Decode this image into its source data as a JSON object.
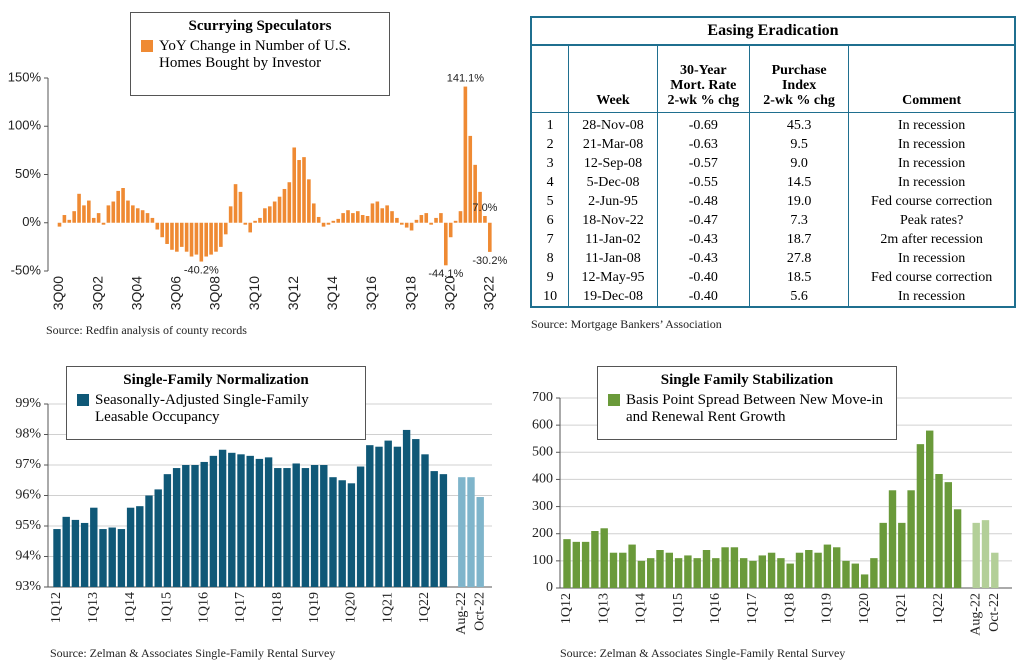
{
  "chart_data": [
    {
      "type": "bar",
      "title": "Scurrying Speculators",
      "source": "Source: Redfin analysis of county records",
      "categories": [
        "3Q00",
        null,
        null,
        null,
        null,
        null,
        null,
        null,
        "3Q02",
        null,
        null,
        null,
        null,
        null,
        null,
        null,
        "3Q04",
        null,
        null,
        null,
        null,
        null,
        null,
        null,
        "3Q06",
        null,
        null,
        null,
        null,
        null,
        null,
        null,
        "3Q08",
        null,
        null,
        null,
        null,
        null,
        null,
        null,
        "3Q10",
        null,
        null,
        null,
        null,
        null,
        null,
        null,
        "3Q12",
        null,
        null,
        null,
        null,
        null,
        null,
        null,
        "3Q14",
        null,
        null,
        null,
        null,
        null,
        null,
        null,
        "3Q16",
        null,
        null,
        null,
        null,
        null,
        null,
        null,
        "3Q18",
        null,
        null,
        null,
        null,
        null,
        null,
        null,
        "3Q20",
        null,
        null,
        null,
        null,
        null,
        null,
        null,
        "3Q22"
      ],
      "series": [
        {
          "name": "YoY Change in Number of U.S. Homes Bought by Investor",
          "color": "#ef8a33",
          "values": [
            -4,
            8,
            3,
            12,
            30,
            18,
            23,
            5,
            10,
            -2,
            18,
            22,
            33,
            36,
            23,
            18,
            15,
            13,
            10,
            5,
            -7,
            -15,
            -22,
            -28,
            -30,
            -25,
            -30,
            -35,
            -33,
            -40.2,
            -35,
            -33,
            -30,
            -25,
            -12,
            17,
            40,
            32,
            -2,
            -10,
            2,
            5,
            15,
            17,
            22,
            27,
            35,
            42,
            78,
            65,
            68,
            45,
            20,
            6,
            -4,
            -2,
            2,
            4,
            10,
            13,
            10,
            12,
            8,
            7,
            20,
            22,
            15,
            18,
            12,
            5,
            -2,
            -5,
            -8,
            3,
            8,
            10,
            -2,
            5,
            10,
            -44.1,
            -15,
            2,
            12,
            141.1,
            90,
            60,
            32,
            7.0,
            -30.2
          ],
          "value_labels": [
            null,
            null,
            null,
            null,
            null,
            null,
            null,
            null,
            null,
            null,
            null,
            null,
            null,
            null,
            null,
            null,
            null,
            null,
            null,
            null,
            null,
            null,
            null,
            null,
            null,
            null,
            null,
            null,
            null,
            "-40.2%",
            null,
            null,
            null,
            null,
            null,
            null,
            null,
            null,
            null,
            null,
            null,
            null,
            null,
            null,
            null,
            null,
            null,
            null,
            null,
            null,
            null,
            null,
            null,
            null,
            null,
            null,
            null,
            null,
            null,
            null,
            null,
            null,
            null,
            null,
            null,
            null,
            null,
            null,
            null,
            null,
            null,
            null,
            null,
            null,
            null,
            null,
            null,
            null,
            null,
            "-44.1%",
            null,
            null,
            null,
            "141.1%",
            null,
            null,
            null,
            "7.0%",
            "-30.2%"
          ]
        }
      ],
      "ylim": [
        -50,
        150
      ],
      "yticks": [
        {
          "value": -50,
          "label": "-50%"
        },
        {
          "value": 0,
          "label": "0%"
        },
        {
          "value": 50,
          "label": "50%"
        },
        {
          "value": 100,
          "label": "100%"
        },
        {
          "value": 150,
          "label": "150%"
        }
      ],
      "grid": false
    },
    {
      "type": "bar",
      "title": "Single-Family Normalization",
      "source": "Source: Zelman & Associates Single-Family Rental Survey",
      "categories": [
        "1Q12",
        null,
        null,
        null,
        "1Q13",
        null,
        null,
        null,
        "1Q14",
        null,
        null,
        null,
        "1Q15",
        null,
        null,
        null,
        "1Q16",
        null,
        null,
        null,
        "1Q17",
        null,
        null,
        null,
        "1Q18",
        null,
        null,
        null,
        "1Q19",
        null,
        null,
        null,
        "1Q20",
        null,
        null,
        null,
        "1Q21",
        null,
        null,
        null,
        "1Q22",
        null,
        null,
        "Aug-22",
        null,
        "Oct-22"
      ],
      "series": [
        {
          "name": "Seasonally-Adjusted Single-Family Leasable Occupancy",
          "color": "#0f5877",
          "values": [
            94.9,
            95.3,
            95.2,
            95.1,
            95.6,
            94.9,
            94.95,
            94.9,
            95.6,
            95.65,
            96.0,
            96.2,
            96.7,
            96.9,
            97.0,
            97.0,
            97.1,
            97.3,
            97.5,
            97.4,
            97.35,
            97.3,
            97.2,
            97.25,
            96.9,
            96.9,
            97.05,
            96.9,
            97.0,
            97.0,
            96.6,
            96.5,
            96.4,
            96.95,
            97.65,
            97.6,
            97.8,
            97.6,
            98.15,
            97.85,
            97.35,
            96.8,
            96.7,
            null,
            null,
            null
          ]
        },
        {
          "color": "#7fb5cb",
          "values": [
            null,
            null,
            null,
            null,
            null,
            null,
            null,
            null,
            null,
            null,
            null,
            null,
            null,
            null,
            null,
            null,
            null,
            null,
            null,
            null,
            null,
            null,
            null,
            null,
            null,
            null,
            null,
            null,
            null,
            null,
            null,
            null,
            null,
            null,
            null,
            null,
            null,
            null,
            null,
            null,
            null,
            null,
            null,
            96.6,
            96.6,
            95.95
          ]
        }
      ],
      "ylim": [
        93,
        99
      ],
      "yticks": [
        {
          "value": 93,
          "label": "93%"
        },
        {
          "value": 94,
          "label": "94%"
        },
        {
          "value": 95,
          "label": "95%"
        },
        {
          "value": 96,
          "label": "96%"
        },
        {
          "value": 97,
          "label": "97%"
        },
        {
          "value": 98,
          "label": "98%"
        },
        {
          "value": 99,
          "label": "99%"
        }
      ],
      "grid": true
    },
    {
      "type": "bar",
      "title": "Single Family Stabilization",
      "source": "Source: Zelman & Associates Single-Family Rental Survey",
      "categories": [
        "1Q12",
        null,
        null,
        null,
        "1Q13",
        null,
        null,
        null,
        "1Q14",
        null,
        null,
        null,
        "1Q15",
        null,
        null,
        null,
        "1Q16",
        null,
        null,
        null,
        "1Q17",
        null,
        null,
        null,
        "1Q18",
        null,
        null,
        null,
        "1Q19",
        null,
        null,
        null,
        "1Q20",
        null,
        null,
        null,
        "1Q21",
        null,
        null,
        null,
        "1Q22",
        null,
        null,
        "Aug-22",
        null,
        "Oct-22"
      ],
      "series": [
        {
          "name": "Basis Point Spread Between New Move-in and Renewal Rent Growth",
          "color": "#6a9a3a",
          "values": [
            180,
            170,
            170,
            210,
            220,
            130,
            130,
            160,
            100,
            110,
            140,
            130,
            110,
            120,
            110,
            140,
            110,
            150,
            150,
            110,
            100,
            120,
            130,
            110,
            90,
            130,
            140,
            130,
            160,
            150,
            100,
            90,
            50,
            110,
            240,
            360,
            240,
            360,
            530,
            580,
            420,
            390,
            290,
            null,
            null,
            null
          ]
        },
        {
          "color": "#b3cf98",
          "values": [
            null,
            null,
            null,
            null,
            null,
            null,
            null,
            null,
            null,
            null,
            null,
            null,
            null,
            null,
            null,
            null,
            null,
            null,
            null,
            null,
            null,
            null,
            null,
            null,
            null,
            null,
            null,
            null,
            null,
            null,
            null,
            null,
            null,
            null,
            null,
            null,
            null,
            null,
            null,
            null,
            null,
            null,
            null,
            240,
            250,
            130
          ]
        }
      ],
      "ylim": [
        0,
        700
      ],
      "yticks": [
        0,
        100,
        200,
        300,
        400,
        500,
        600,
        700
      ],
      "grid": true
    }
  ],
  "table": {
    "title": "Easing Eradication",
    "source": "Source: Mortgage Bankers’ Association",
    "headers": [
      [
        "Week"
      ],
      [
        "30-Year",
        "Mort. Rate",
        "2-wk % chg"
      ],
      [
        "Purchase",
        "Index",
        "2-wk % chg"
      ],
      [
        "Comment"
      ]
    ],
    "rows": [
      [
        "1",
        "28-Nov-08",
        "-0.69",
        "45.3",
        "In recession"
      ],
      [
        "2",
        "21-Mar-08",
        "-0.63",
        "9.5",
        "In recession"
      ],
      [
        "3",
        "12-Sep-08",
        "-0.57",
        "9.0",
        "In recession"
      ],
      [
        "4",
        "5-Dec-08",
        "-0.55",
        "14.5",
        "In recession"
      ],
      [
        "5",
        "2-Jun-95",
        "-0.48",
        "19.0",
        "Fed course correction"
      ],
      [
        "6",
        "18-Nov-22",
        "-0.47",
        "7.3",
        "Peak rates?"
      ],
      [
        "7",
        "11-Jan-02",
        "-0.43",
        "18.7",
        "2m after recession"
      ],
      [
        "8",
        "11-Jan-08",
        "-0.43",
        "27.8",
        "In recession"
      ],
      [
        "9",
        "12-May-95",
        "-0.40",
        "18.5",
        "Fed course correction"
      ],
      [
        "10",
        "19-Dec-08",
        "-0.40",
        "5.6",
        "In recession"
      ]
    ]
  }
}
